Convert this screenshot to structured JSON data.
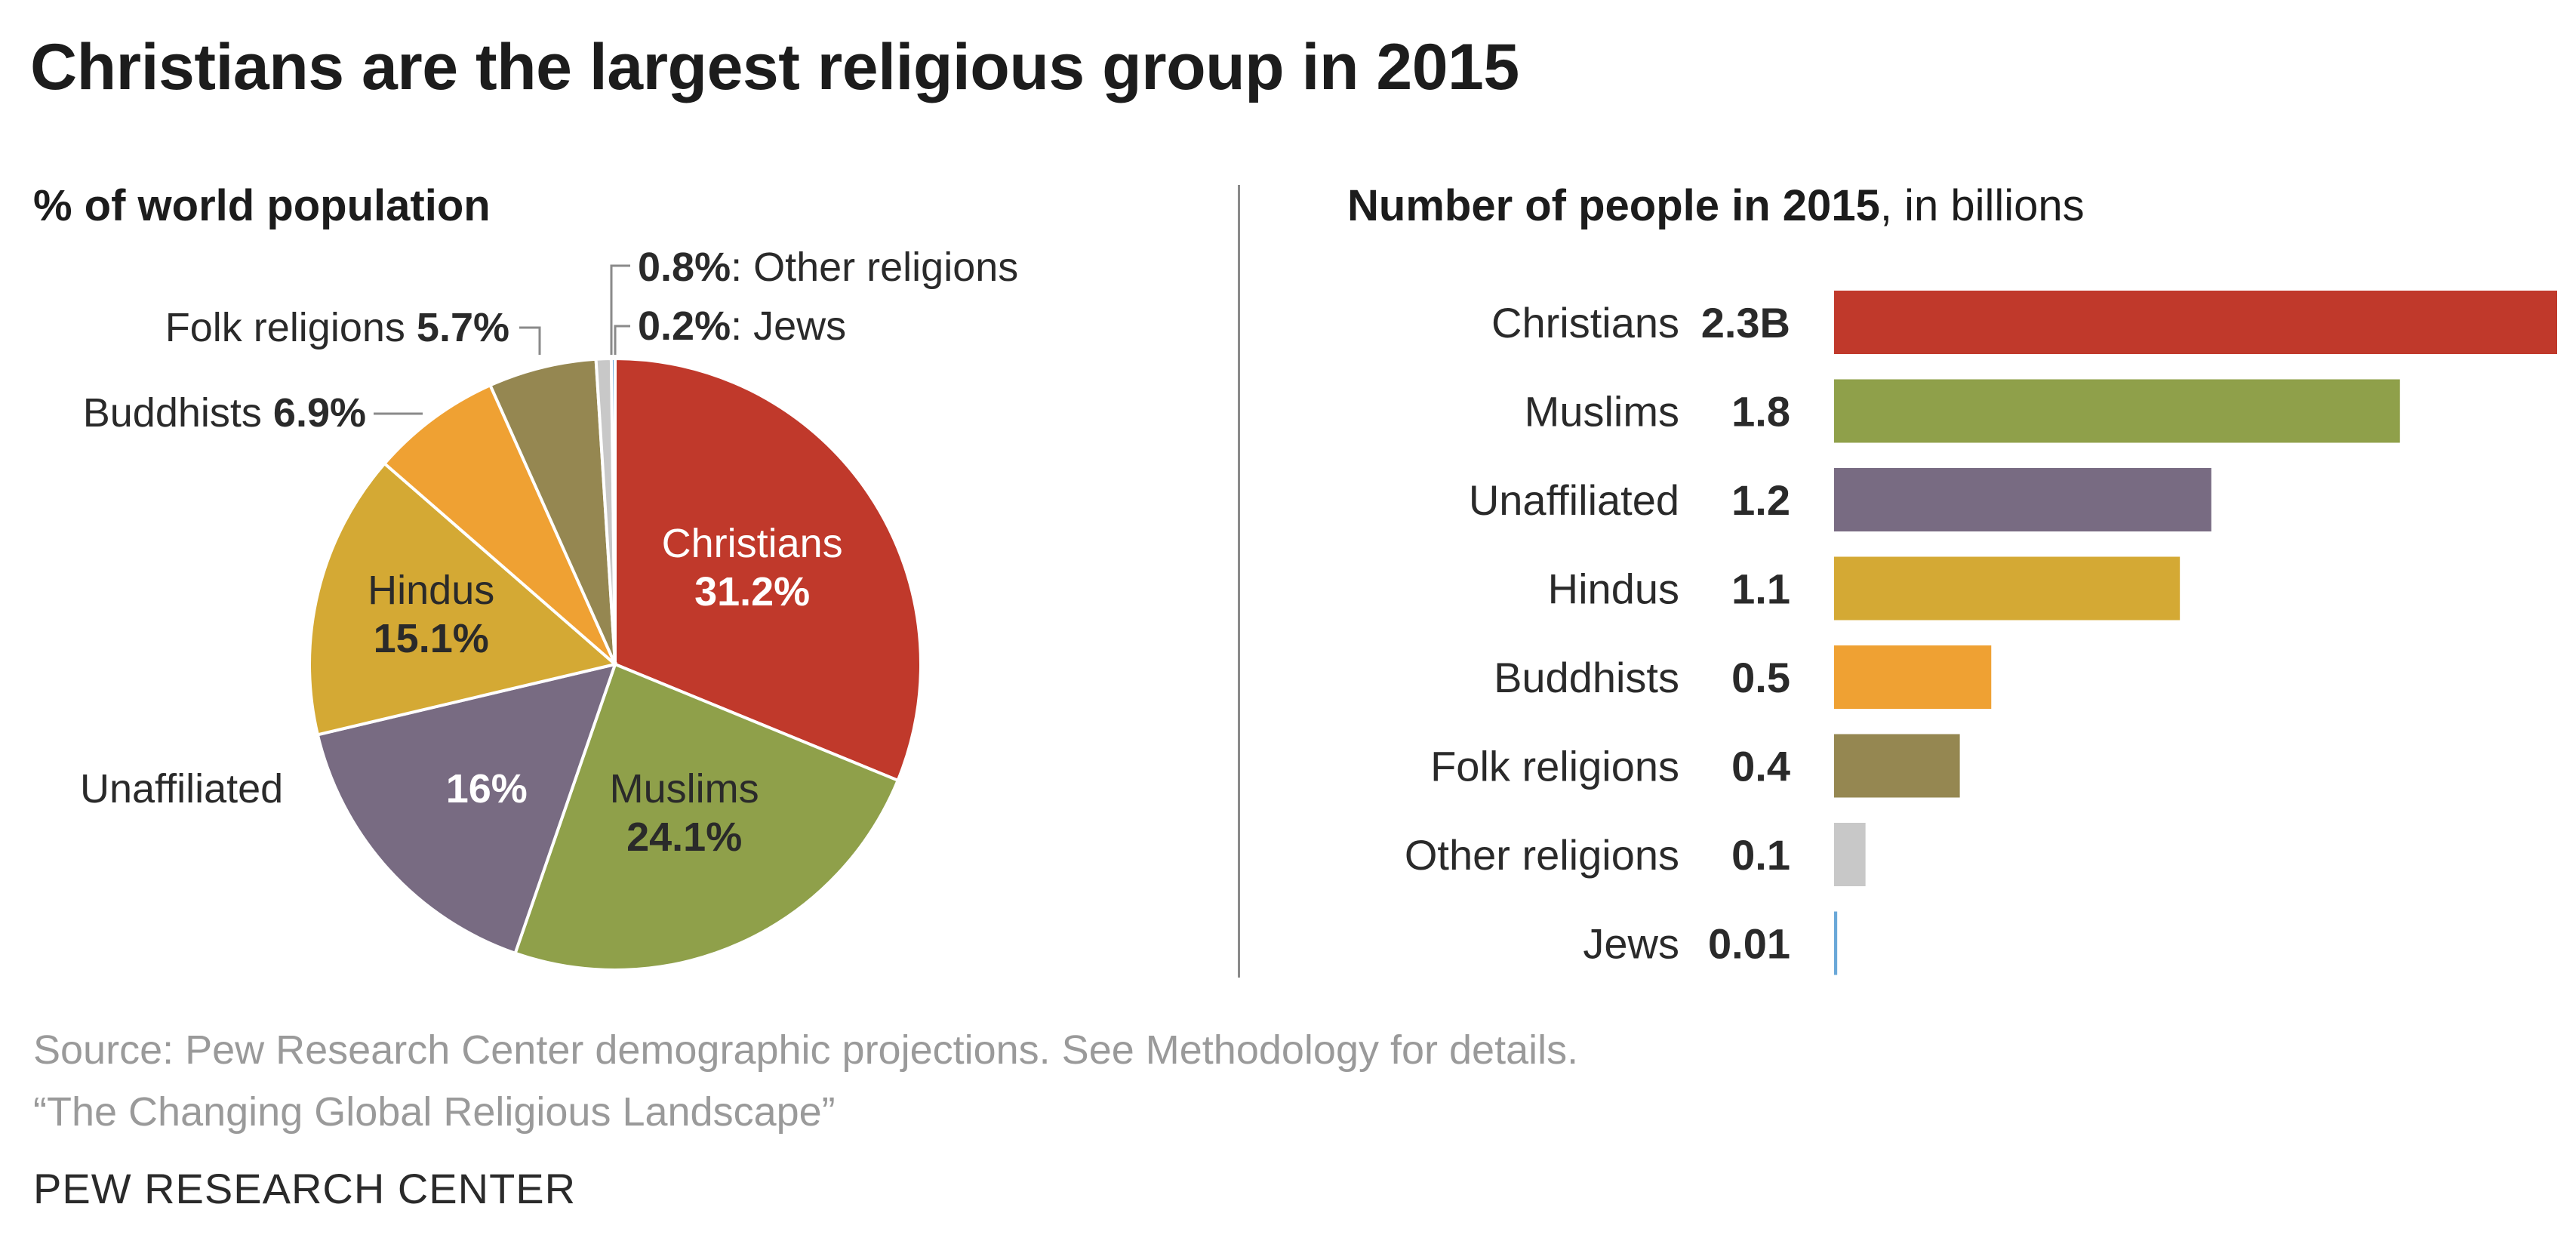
{
  "title": "Christians are the largest religious group in 2015",
  "source": {
    "line1": "Source: Pew Research Center demographic projections. See Methodology for details.",
    "line2": "“The Changing Global Religious Landscape”"
  },
  "footer": "PEW RESEARCH CENTER",
  "colors": {
    "christians": "#c0392b",
    "muslims": "#8fa04a",
    "unaffiliated": "#786b82",
    "hindus": "#d4a934",
    "buddhists": "#efa133",
    "folk": "#958751",
    "other": "#c8c8c8",
    "jews": "#6aa8d8"
  },
  "chart_data": [
    {
      "type": "pie",
      "title": "% of world population",
      "slices": [
        {
          "name": "Christians",
          "value": 31.2,
          "label": "31.2%",
          "color_key": "christians"
        },
        {
          "name": "Muslims",
          "value": 24.1,
          "label": "24.1%",
          "color_key": "muslims"
        },
        {
          "name": "Unaffiliated",
          "value": 16,
          "label": "16%",
          "color_key": "unaffiliated"
        },
        {
          "name": "Hindus",
          "value": 15.1,
          "label": "15.1%",
          "color_key": "hindus"
        },
        {
          "name": "Buddhists",
          "value": 6.9,
          "label": "6.9%",
          "color_key": "buddhists"
        },
        {
          "name": "Folk religions",
          "value": 5.7,
          "label": "5.7%",
          "color_key": "folk"
        },
        {
          "name": "Other religions",
          "value": 0.8,
          "label": "0.8%",
          "color_key": "other"
        },
        {
          "name": "Jews",
          "value": 0.2,
          "label": "0.2%",
          "color_key": "jews"
        }
      ]
    },
    {
      "type": "bar",
      "orientation": "horizontal",
      "title_bold": "Number of people in 2015",
      "title_rest": ", in billions",
      "categories": [
        "Christians",
        "Muslims",
        "Unaffiliated",
        "Hindus",
        "Buddhists",
        "Folk religions",
        "Other religions",
        "Jews"
      ],
      "values": [
        2.3,
        1.8,
        1.2,
        1.1,
        0.5,
        0.4,
        0.1,
        0.01
      ],
      "value_labels": [
        "2.3B",
        "1.8",
        "1.2",
        "1.1",
        "0.5",
        "0.4",
        "0.1",
        "0.01"
      ],
      "color_keys": [
        "christians",
        "muslims",
        "unaffiliated",
        "hindus",
        "buddhists",
        "folk",
        "other",
        "jews"
      ],
      "xlim": [
        0,
        2.3
      ]
    }
  ]
}
